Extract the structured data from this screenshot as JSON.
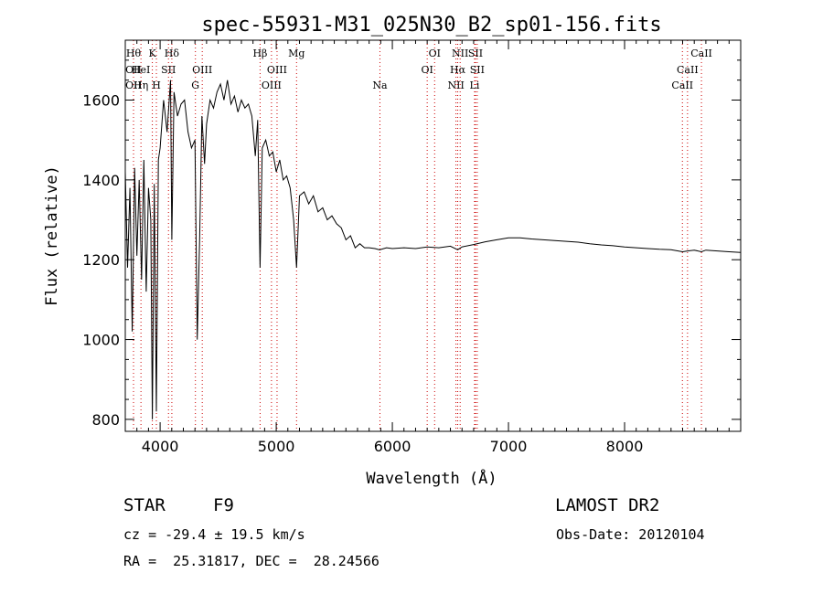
{
  "chart_data": {
    "type": "line",
    "title": "spec-55931-M31_025N30_B2_sp01-156.fits",
    "xlabel": "Wavelength (Å)",
    "ylabel": "Flux (relative)",
    "xlim": [
      3700,
      9000
    ],
    "ylim": [
      770,
      1750
    ],
    "grid": false,
    "x_ticks": [
      4000,
      5000,
      6000,
      7000,
      8000
    ],
    "y_ticks": [
      800,
      1000,
      1200,
      1400,
      1600
    ],
    "x_tick_labels": [
      "4000",
      "5000",
      "6000",
      "7000",
      "8000"
    ],
    "y_tick_labels": [
      "800",
      "1000",
      "1200",
      "1400",
      "1600"
    ],
    "line_color": "#000000",
    "marker_color": "#cc0000",
    "series": [
      {
        "x": [
          3700,
          3720,
          3740,
          3760,
          3780,
          3800,
          3820,
          3840,
          3860,
          3880,
          3900,
          3920,
          3933,
          3950,
          3968,
          3985,
          4000,
          4030,
          4060,
          4090,
          4101,
          4120,
          4150,
          4180,
          4210,
          4240,
          4270,
          4300,
          4320,
          4340,
          4360,
          4383,
          4400,
          4430,
          4460,
          4490,
          4520,
          4550,
          4580,
          4610,
          4640,
          4670,
          4700,
          4730,
          4760,
          4790,
          4820,
          4840,
          4861,
          4880,
          4910,
          4940,
          4970,
          5000,
          5030,
          5060,
          5090,
          5120,
          5150,
          5175,
          5200,
          5240,
          5280,
          5320,
          5360,
          5400,
          5440,
          5480,
          5520,
          5560,
          5600,
          5640,
          5680,
          5720,
          5760,
          5800,
          5850,
          5890,
          5950,
          6000,
          6100,
          6200,
          6300,
          6400,
          6500,
          6563,
          6600,
          6700,
          6800,
          6900,
          7000,
          7100,
          7200,
          7300,
          7400,
          7500,
          7600,
          7700,
          7800,
          7900,
          8000,
          8100,
          8200,
          8300,
          8400,
          8500,
          8542,
          8600,
          8662,
          8700,
          8800,
          8900,
          9000
        ],
        "y": [
          1420,
          1180,
          1380,
          1020,
          1430,
          1210,
          1400,
          1150,
          1450,
          1120,
          1380,
          1300,
          800,
          1390,
          820,
          1450,
          1480,
          1600,
          1520,
          1650,
          1250,
          1620,
          1560,
          1590,
          1600,
          1520,
          1480,
          1500,
          1000,
          1250,
          1560,
          1440,
          1540,
          1600,
          1580,
          1620,
          1640,
          1600,
          1650,
          1590,
          1610,
          1570,
          1600,
          1580,
          1590,
          1560,
          1460,
          1550,
          1180,
          1480,
          1500,
          1460,
          1470,
          1420,
          1450,
          1400,
          1410,
          1380,
          1300,
          1180,
          1360,
          1370,
          1340,
          1360,
          1320,
          1330,
          1300,
          1310,
          1290,
          1280,
          1250,
          1260,
          1230,
          1240,
          1230,
          1230,
          1228,
          1225,
          1230,
          1228,
          1230,
          1228,
          1232,
          1230,
          1234,
          1225,
          1232,
          1238,
          1245,
          1250,
          1255,
          1255,
          1252,
          1250,
          1248,
          1246,
          1244,
          1240,
          1237,
          1235,
          1232,
          1230,
          1228,
          1226,
          1225,
          1220,
          1222,
          1224,
          1220,
          1224,
          1222,
          1220,
          1218
        ]
      }
    ],
    "line_markers": [
      {
        "x": 3771,
        "labels": [
          "Hθ",
          "OII",
          "OII"
        ]
      },
      {
        "x": 3835,
        "labels": [
          "",
          "HeI",
          "Hη"
        ]
      },
      {
        "x": 3933,
        "labels": [
          "K",
          "",
          ""
        ]
      },
      {
        "x": 3968,
        "labels": [
          "",
          "",
          "H"
        ]
      },
      {
        "x": 4072,
        "labels": [
          "",
          "SII",
          ""
        ]
      },
      {
        "x": 4101,
        "labels": [
          "Hδ",
          "",
          ""
        ]
      },
      {
        "x": 4304,
        "labels": [
          "",
          "",
          "G"
        ]
      },
      {
        "x": 4363,
        "labels": [
          "",
          "OIII",
          ""
        ]
      },
      {
        "x": 4861,
        "labels": [
          "Hβ",
          "",
          ""
        ]
      },
      {
        "x": 4959,
        "labels": [
          "",
          "",
          "OIII"
        ]
      },
      {
        "x": 5007,
        "labels": [
          "",
          "OIII",
          ""
        ]
      },
      {
        "x": 5175,
        "labels": [
          "Mg",
          "",
          ""
        ]
      },
      {
        "x": 5893,
        "labels": [
          "",
          "",
          "Na"
        ]
      },
      {
        "x": 6300,
        "labels": [
          "",
          "OI",
          ""
        ]
      },
      {
        "x": 6364,
        "labels": [
          "OI",
          "",
          ""
        ]
      },
      {
        "x": 6548,
        "labels": [
          "",
          "",
          "NII"
        ]
      },
      {
        "x": 6563,
        "labels": [
          "",
          "Hα",
          ""
        ]
      },
      {
        "x": 6584,
        "labels": [
          "NII",
          "",
          ""
        ]
      },
      {
        "x": 6708,
        "labels": [
          "",
          "",
          "Li"
        ]
      },
      {
        "x": 6716,
        "labels": [
          "SII",
          "",
          ""
        ]
      },
      {
        "x": 6731,
        "labels": [
          "",
          "SII",
          ""
        ]
      },
      {
        "x": 8498,
        "labels": [
          "",
          "",
          "CaII"
        ]
      },
      {
        "x": 8542,
        "labels": [
          "",
          "CaII",
          ""
        ]
      },
      {
        "x": 8662,
        "labels": [
          "CaII",
          "",
          ""
        ]
      }
    ]
  },
  "info": {
    "class_label": "STAR",
    "subclass": "F9",
    "survey": "LAMOST DR2",
    "cz": "cz = -29.4 ± 19.5 km/s",
    "obs_date": "Obs-Date: 20120104",
    "coords": "RA =  25.31817, DEC =  28.24566"
  }
}
